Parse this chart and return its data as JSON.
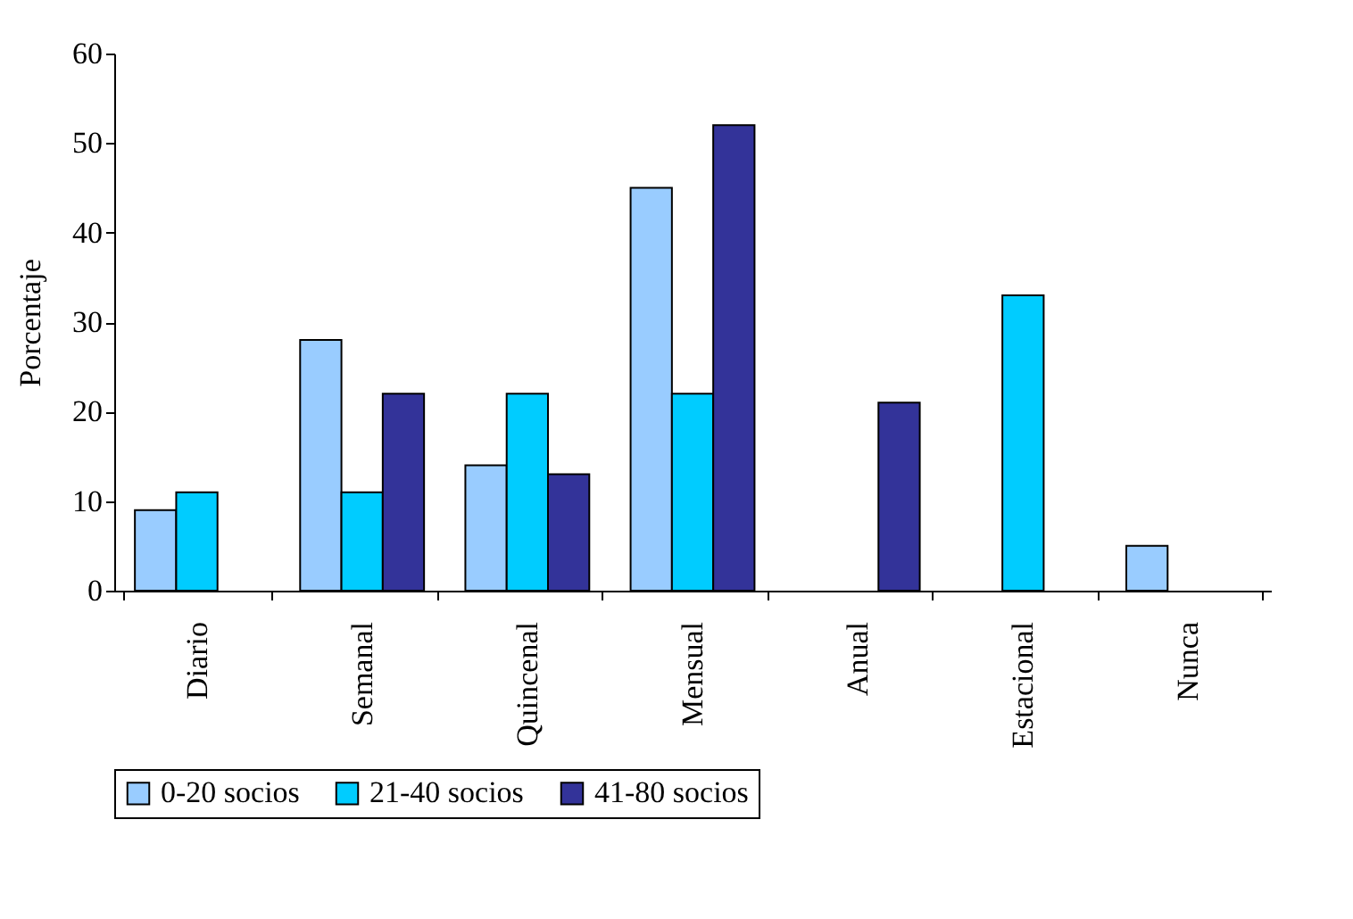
{
  "chart_data": {
    "type": "bar",
    "ylabel": "Porcentaje",
    "categories": [
      "Diario",
      "Semanal",
      "Quincenal",
      "Mensual",
      "Anual",
      "Estacional",
      "Nunca"
    ],
    "series": [
      {
        "name": "0-20 socios",
        "color": "#99ccff",
        "values": [
          9,
          28,
          14,
          45,
          null,
          null,
          5
        ]
      },
      {
        "name": "21-40 socios",
        "color": "#00ccff",
        "values": [
          11,
          11,
          22,
          22,
          null,
          33,
          null
        ]
      },
      {
        "name": "41-80 socios",
        "color": "#333399",
        "values": [
          null,
          22,
          13,
          52,
          21,
          null,
          null
        ]
      }
    ],
    "ylim": [
      0,
      60
    ],
    "yticks": [
      0,
      10,
      20,
      30,
      40,
      50,
      60
    ],
    "grid": false,
    "legend": "bottom"
  }
}
